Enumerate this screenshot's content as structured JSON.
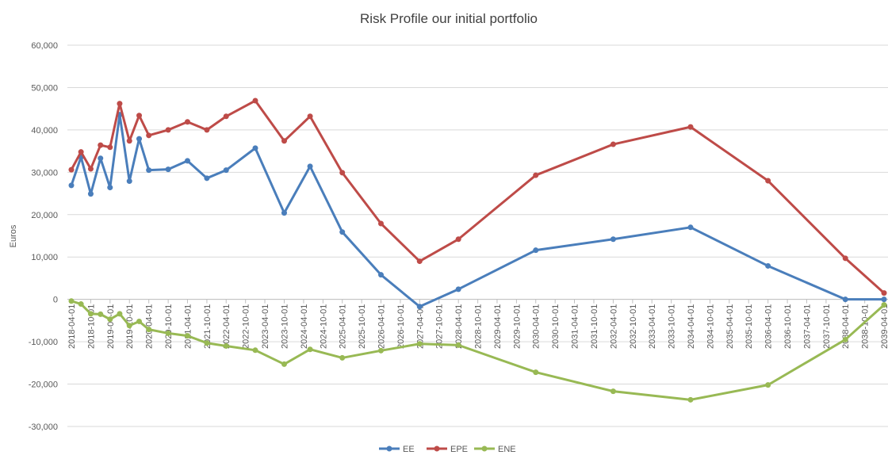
{
  "chart_data": {
    "type": "line",
    "title": "Risk Profile our initial portfolio",
    "y_label": "Euros",
    "x": [
      "2018-04-01",
      "2018-07-01",
      "2018-10-01",
      "2019-01-01",
      "2019-04-01",
      "2019-07-01",
      "2019-10-01",
      "2020-01-01",
      "2020-04-01",
      "2020-10-01",
      "2021-04-01",
      "2021-10-01",
      "2022-04-01",
      "2023-01-01",
      "2023-10-01",
      "2024-06-01",
      "2025-04-01",
      "2026-04-01",
      "2027-04-01",
      "2028-04-01",
      "2030-04-01",
      "2032-04-01",
      "2034-04-01",
      "2036-04-01",
      "2038-04-01",
      "2039-04-01"
    ],
    "series": [
      {
        "name": "EE",
        "color": "#4a7ebb",
        "values": [
          26900,
          33600,
          24900,
          33300,
          26400,
          43600,
          27900,
          37900,
          30500,
          30700,
          32700,
          28600,
          30500,
          35700,
          20400,
          31400,
          15900,
          5800,
          -1700,
          2400,
          11600,
          14200,
          17000,
          7900,
          0,
          0
        ]
      },
      {
        "name": "EPE",
        "color": "#be4b48",
        "values": [
          30600,
          34800,
          30800,
          36400,
          35900,
          46200,
          37400,
          43400,
          38700,
          40000,
          41900,
          40000,
          43200,
          46900,
          37400,
          43200,
          29900,
          17900,
          9000,
          14200,
          29300,
          36600,
          40700,
          28000,
          9700,
          1500
        ]
      },
      {
        "name": "ENE",
        "color": "#98b954",
        "values": [
          -400,
          -1100,
          -3400,
          -3500,
          -4700,
          -3400,
          -6200,
          -5200,
          -7100,
          -8000,
          -8600,
          -10300,
          -11000,
          -12000,
          -15300,
          -11800,
          -13800,
          -12100,
          -10500,
          -10800,
          -17200,
          -21700,
          -23700,
          -20200,
          -9500,
          -1300
        ]
      }
    ],
    "xlim": [
      "2018-04-01",
      "2039-04-01"
    ],
    "xticks": [
      "2018-04-01",
      "2018-10-01",
      "2019-04-01",
      "2019-10-01",
      "2020-04-01",
      "2020-10-01",
      "2021-04-01",
      "2021-10-01",
      "2022-04-01",
      "2022-10-01",
      "2023-04-01",
      "2023-10-01",
      "2024-04-01",
      "2024-10-01",
      "2025-04-01",
      "2025-10-01",
      "2026-04-01",
      "2026-10-01",
      "2027-04-01",
      "2027-10-01",
      "2028-04-01",
      "2028-10-01",
      "2029-04-01",
      "2029-10-01",
      "2030-04-01",
      "2030-10-01",
      "2031-04-01",
      "2031-10-01",
      "2032-04-01",
      "2032-10-01",
      "2033-04-01",
      "2033-10-01",
      "2034-04-01",
      "2034-10-01",
      "2035-04-01",
      "2035-10-01",
      "2036-04-01",
      "2036-10-01",
      "2037-04-01",
      "2037-10-01",
      "2038-04-01",
      "2038-10-01",
      "2039-04-01"
    ],
    "ylim": [
      -30000,
      60000
    ],
    "yticks": [
      {
        "value": -30000,
        "label": "-30,000"
      },
      {
        "value": -20000,
        "label": "-20,000"
      },
      {
        "value": -10000,
        "label": "-10,000"
      },
      0,
      {
        "value": 10000,
        "label": "10,000"
      },
      {
        "value": 20000,
        "label": "20,000"
      },
      {
        "value": 30000,
        "label": "30,000"
      },
      {
        "value": 40000,
        "label": "40,000"
      },
      {
        "value": 50000,
        "label": "50,000"
      },
      {
        "value": 60000,
        "label": "60,000"
      }
    ],
    "grid": true,
    "legend": "bottom"
  }
}
